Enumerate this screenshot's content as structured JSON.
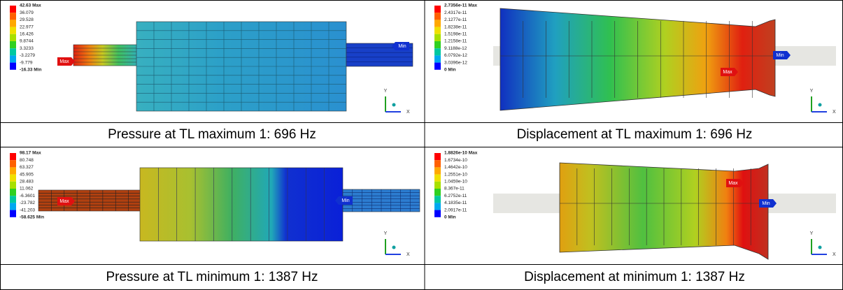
{
  "panels": [
    {
      "legend": [
        "42.63 Max",
        "36.079",
        "29.528",
        "22.977",
        "16.426",
        "9.8744",
        "3.3233",
        "-3.2279",
        "-9.779",
        "-16.33 Min"
      ],
      "max_tag": "Max",
      "min_tag": "Min",
      "caption": "Pressure at TL maximum 1: 696 Hz"
    },
    {
      "legend": [
        "2.7356e-11 Max",
        "2.4317e-11",
        "2.1277e-11",
        "1.8238e-11",
        "1.5198e-11",
        "1.2158e-11",
        "9.1188e-12",
        "6.0792e-12",
        "3.0396e-12",
        "0 Min"
      ],
      "max_tag": "Max",
      "min_tag": "Min",
      "caption": "Displacement at TL maximum 1: 696 Hz"
    },
    {
      "legend": [
        "98.17 Max",
        "80.748",
        "63.327",
        "45.905",
        "28.483",
        "11.062",
        "-6.3601",
        "-23.782",
        "-41.203",
        "-58.625 Min"
      ],
      "max_tag": "Max",
      "min_tag": "Min",
      "caption": "Pressure at TL minimum 1: 1387 Hz"
    },
    {
      "legend": [
        "1.8826e-10 Max",
        "1.6734e-10",
        "1.4642e-10",
        "1.2551e-10",
        "1.0459e-10",
        "8.367e-11",
        "6.2752e-11",
        "4.1835e-11",
        "2.0917e-11",
        "0 Min"
      ],
      "max_tag": "Max",
      "min_tag": "Min",
      "caption": "Displacement at minimum 1: 1387 Hz"
    }
  ],
  "triad": {
    "y": "Y",
    "x": "X"
  }
}
